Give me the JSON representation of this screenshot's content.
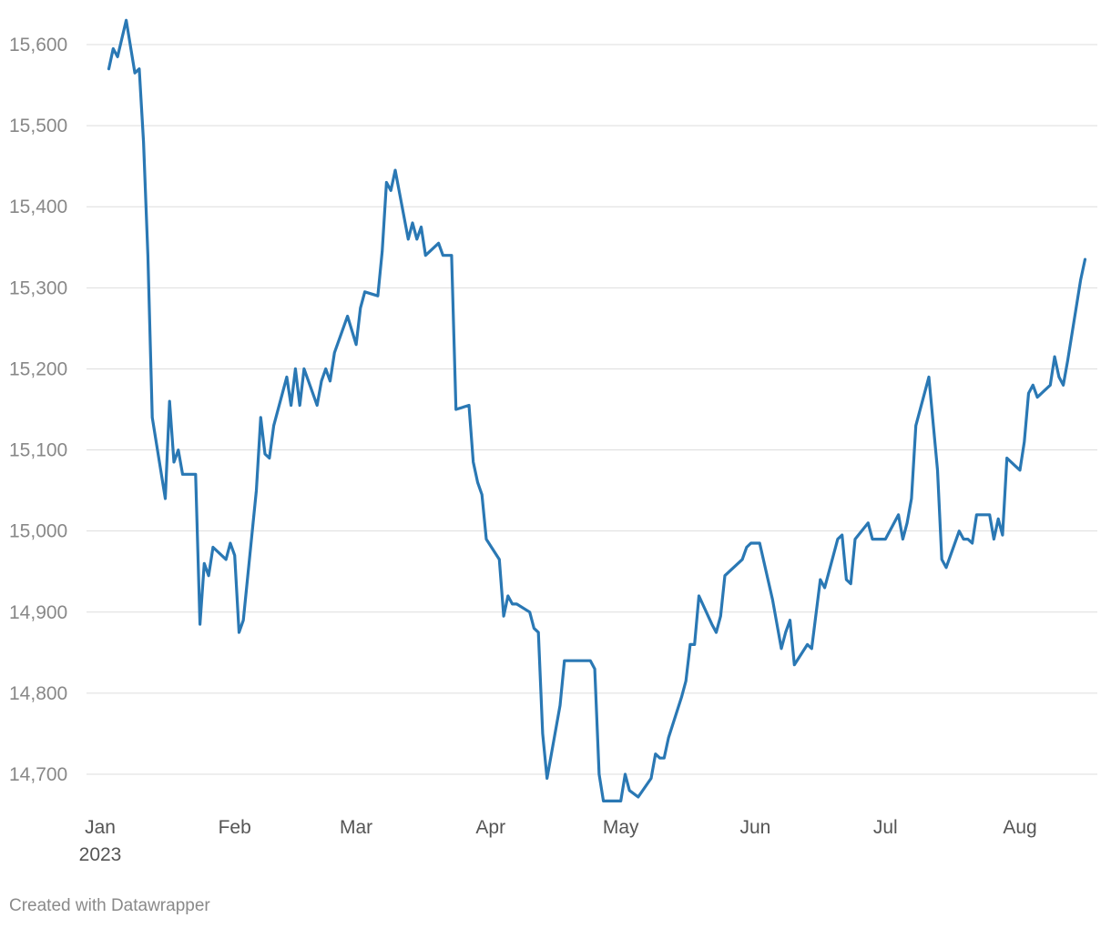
{
  "credit": "Created with Datawrapper",
  "colors": {
    "line": "#2a78b4",
    "grid": "#dddddd"
  },
  "chart_data": {
    "type": "line",
    "title": "",
    "xlabel": "",
    "ylabel": "",
    "ylim": [
      14665,
      15630
    ],
    "grid": "horizontal",
    "y_ticks": [
      14700,
      14800,
      14900,
      15000,
      15100,
      15200,
      15300,
      15400,
      15500,
      15600
    ],
    "y_tick_labels": [
      "14,700",
      "14,800",
      "14,900",
      "15,000",
      "15,100",
      "15,200",
      "15,300",
      "15,400",
      "15,500",
      "15,600"
    ],
    "x_ticks": [
      {
        "date": "2023-01-01",
        "label": "Jan",
        "sublabel": "2023"
      },
      {
        "date": "2023-02-01",
        "label": "Feb",
        "sublabel": ""
      },
      {
        "date": "2023-03-01",
        "label": "Mar",
        "sublabel": ""
      },
      {
        "date": "2023-04-01",
        "label": "Apr",
        "sublabel": ""
      },
      {
        "date": "2023-05-01",
        "label": "May",
        "sublabel": ""
      },
      {
        "date": "2023-06-01",
        "label": "Jun",
        "sublabel": ""
      },
      {
        "date": "2023-07-01",
        "label": "Jul",
        "sublabel": ""
      },
      {
        "date": "2023-08-01",
        "label": "Aug",
        "sublabel": ""
      }
    ],
    "series": [
      {
        "color": "#2a78b4",
        "points": [
          [
            "2023-01-03",
            15570
          ],
          [
            "2023-01-04",
            15595
          ],
          [
            "2023-01-05",
            15585
          ],
          [
            "2023-01-07",
            15630
          ],
          [
            "2023-01-09",
            15565
          ],
          [
            "2023-01-10",
            15570
          ],
          [
            "2023-01-11",
            15480
          ],
          [
            "2023-01-12",
            15340
          ],
          [
            "2023-01-13",
            15140
          ],
          [
            "2023-01-16",
            15040
          ],
          [
            "2023-01-17",
            15160
          ],
          [
            "2023-01-18",
            15085
          ],
          [
            "2023-01-19",
            15100
          ],
          [
            "2023-01-20",
            15070
          ],
          [
            "2023-01-23",
            15070
          ],
          [
            "2023-01-24",
            14885
          ],
          [
            "2023-01-25",
            14960
          ],
          [
            "2023-01-26",
            14945
          ],
          [
            "2023-01-27",
            14980
          ],
          [
            "2023-01-30",
            14965
          ],
          [
            "2023-01-31",
            14985
          ],
          [
            "2023-02-01",
            14970
          ],
          [
            "2023-02-02",
            14875
          ],
          [
            "2023-02-03",
            14890
          ],
          [
            "2023-02-06",
            15050
          ],
          [
            "2023-02-07",
            15140
          ],
          [
            "2023-02-08",
            15095
          ],
          [
            "2023-02-09",
            15090
          ],
          [
            "2023-02-10",
            15130
          ],
          [
            "2023-02-13",
            15190
          ],
          [
            "2023-02-14",
            15155
          ],
          [
            "2023-02-15",
            15200
          ],
          [
            "2023-02-16",
            15155
          ],
          [
            "2023-02-17",
            15200
          ],
          [
            "2023-02-20",
            15155
          ],
          [
            "2023-02-21",
            15185
          ],
          [
            "2023-02-22",
            15200
          ],
          [
            "2023-02-23",
            15185
          ],
          [
            "2023-02-24",
            15220
          ],
          [
            "2023-02-27",
            15265
          ],
          [
            "2023-03-01",
            15230
          ],
          [
            "2023-03-02",
            15275
          ],
          [
            "2023-03-03",
            15295
          ],
          [
            "2023-03-06",
            15290
          ],
          [
            "2023-03-07",
            15345
          ],
          [
            "2023-03-08",
            15430
          ],
          [
            "2023-03-09",
            15420
          ],
          [
            "2023-03-10",
            15445
          ],
          [
            "2023-03-13",
            15360
          ],
          [
            "2023-03-14",
            15380
          ],
          [
            "2023-03-15",
            15360
          ],
          [
            "2023-03-16",
            15375
          ],
          [
            "2023-03-17",
            15340
          ],
          [
            "2023-03-20",
            15355
          ],
          [
            "2023-03-21",
            15340
          ],
          [
            "2023-03-23",
            15340
          ],
          [
            "2023-03-24",
            15150
          ],
          [
            "2023-03-27",
            15155
          ],
          [
            "2023-03-28",
            15085
          ],
          [
            "2023-03-29",
            15060
          ],
          [
            "2023-03-30",
            15045
          ],
          [
            "2023-03-31",
            14990
          ],
          [
            "2023-04-03",
            14965
          ],
          [
            "2023-04-04",
            14895
          ],
          [
            "2023-04-05",
            14920
          ],
          [
            "2023-04-06",
            14910
          ],
          [
            "2023-04-07",
            14910
          ],
          [
            "2023-04-10",
            14900
          ],
          [
            "2023-04-11",
            14880
          ],
          [
            "2023-04-12",
            14875
          ],
          [
            "2023-04-13",
            14750
          ],
          [
            "2023-04-14",
            14695
          ],
          [
            "2023-04-17",
            14785
          ],
          [
            "2023-04-18",
            14840
          ],
          [
            "2023-04-24",
            14840
          ],
          [
            "2023-04-25",
            14830
          ],
          [
            "2023-04-26",
            14700
          ],
          [
            "2023-04-27",
            14667
          ],
          [
            "2023-05-01",
            14667
          ],
          [
            "2023-05-02",
            14700
          ],
          [
            "2023-05-03",
            14680
          ],
          [
            "2023-05-05",
            14672
          ],
          [
            "2023-05-08",
            14695
          ],
          [
            "2023-05-09",
            14725
          ],
          [
            "2023-05-10",
            14720
          ],
          [
            "2023-05-11",
            14720
          ],
          [
            "2023-05-12",
            14745
          ],
          [
            "2023-05-15",
            14795
          ],
          [
            "2023-05-16",
            14815
          ],
          [
            "2023-05-17",
            14860
          ],
          [
            "2023-05-18",
            14860
          ],
          [
            "2023-05-19",
            14920
          ],
          [
            "2023-05-22",
            14885
          ],
          [
            "2023-05-23",
            14875
          ],
          [
            "2023-05-24",
            14895
          ],
          [
            "2023-05-25",
            14945
          ],
          [
            "2023-05-29",
            14965
          ],
          [
            "2023-05-30",
            14980
          ],
          [
            "2023-05-31",
            14985
          ],
          [
            "2023-06-02",
            14985
          ],
          [
            "2023-06-05",
            14915
          ],
          [
            "2023-06-07",
            14855
          ],
          [
            "2023-06-08",
            14875
          ],
          [
            "2023-06-09",
            14890
          ],
          [
            "2023-06-10",
            14835
          ],
          [
            "2023-06-13",
            14860
          ],
          [
            "2023-06-14",
            14855
          ],
          [
            "2023-06-16",
            14940
          ],
          [
            "2023-06-17",
            14930
          ],
          [
            "2023-06-20",
            14990
          ],
          [
            "2023-06-21",
            14995
          ],
          [
            "2023-06-22",
            14940
          ],
          [
            "2023-06-23",
            14935
          ],
          [
            "2023-06-24",
            14990
          ],
          [
            "2023-06-27",
            15010
          ],
          [
            "2023-06-28",
            14990
          ],
          [
            "2023-06-30",
            14990
          ],
          [
            "2023-07-01",
            14990
          ],
          [
            "2023-07-04",
            15020
          ],
          [
            "2023-07-05",
            14990
          ],
          [
            "2023-07-06",
            15010
          ],
          [
            "2023-07-07",
            15040
          ],
          [
            "2023-07-08",
            15130
          ],
          [
            "2023-07-11",
            15190
          ],
          [
            "2023-07-13",
            15075
          ],
          [
            "2023-07-14",
            14965
          ],
          [
            "2023-07-15",
            14955
          ],
          [
            "2023-07-18",
            15000
          ],
          [
            "2023-07-19",
            14990
          ],
          [
            "2023-07-20",
            14990
          ],
          [
            "2023-07-21",
            14985
          ],
          [
            "2023-07-22",
            15020
          ],
          [
            "2023-07-25",
            15020
          ],
          [
            "2023-07-26",
            14990
          ],
          [
            "2023-07-27",
            15015
          ],
          [
            "2023-07-28",
            14995
          ],
          [
            "2023-07-29",
            15090
          ],
          [
            "2023-07-31",
            15080
          ],
          [
            "2023-08-01",
            15075
          ],
          [
            "2023-08-02",
            15110
          ],
          [
            "2023-08-03",
            15170
          ],
          [
            "2023-08-04",
            15180
          ],
          [
            "2023-08-05",
            15165
          ],
          [
            "2023-08-08",
            15180
          ],
          [
            "2023-08-09",
            15215
          ],
          [
            "2023-08-10",
            15190
          ],
          [
            "2023-08-11",
            15180
          ],
          [
            "2023-08-12",
            15210
          ],
          [
            "2023-08-15",
            15310
          ],
          [
            "2023-08-16",
            15335
          ]
        ]
      }
    ]
  }
}
